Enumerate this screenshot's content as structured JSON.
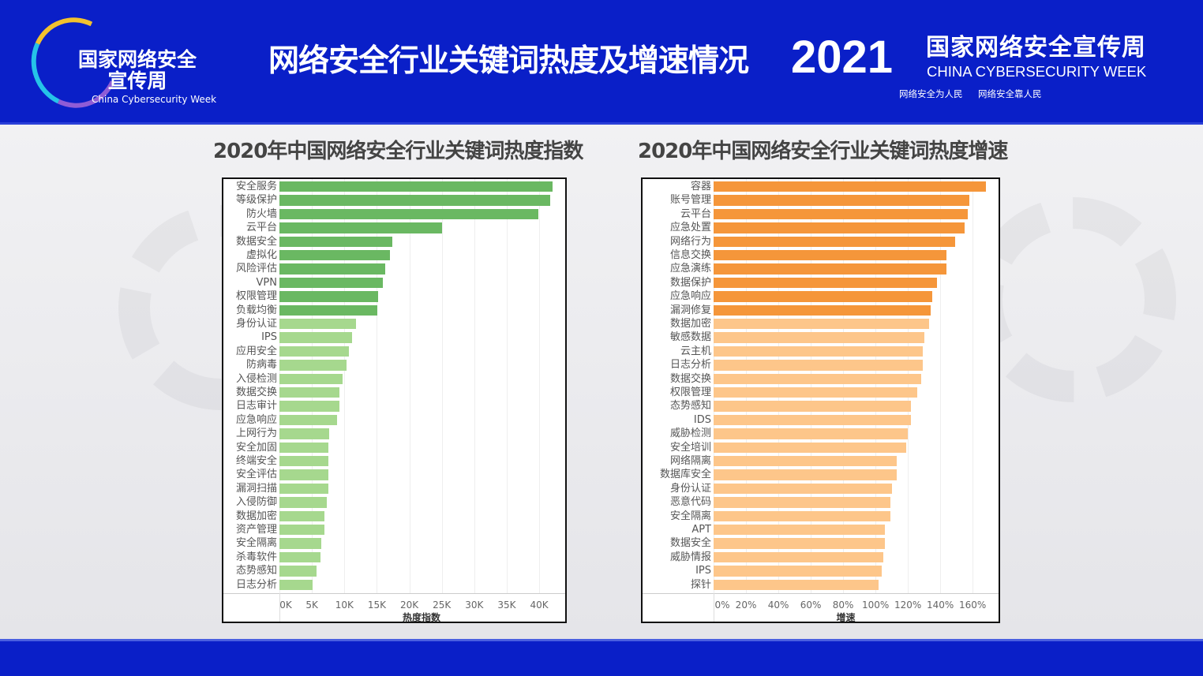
{
  "header": {
    "logo_cn": "国家网络安全宣传周",
    "logo_en": "China Cybersecurity Week",
    "title": "网络安全行业关键词热度及增速情况",
    "year": "2021",
    "week_cn": "国家网络安全宣传周",
    "week_en": "CHINA CYBERSECURITY WEEK",
    "slogan1": "网络安全为人民",
    "slogan2": "网络安全靠人民"
  },
  "chart_data": [
    {
      "type": "bar",
      "orientation": "horizontal",
      "title": "2020年中国网络安全行业关键词热度指数",
      "xlabel": "热度指数",
      "xlim": [
        0,
        44000
      ],
      "ticks": [
        "0K",
        "5K",
        "10K",
        "15K",
        "20K",
        "25K",
        "30K",
        "35K",
        "40K"
      ],
      "tick_values": [
        0,
        5000,
        10000,
        15000,
        20000,
        25000,
        30000,
        35000,
        40000
      ],
      "highlight_top": 10,
      "colors": {
        "top": "#6ab862",
        "rest": "#a6d88e"
      },
      "categories": [
        "安全服务",
        "等级保护",
        "防火墙",
        "云平台",
        "数据安全",
        "虚拟化",
        "风险评估",
        "VPN",
        "权限管理",
        "负载均衡",
        "身份认证",
        "IPS",
        "应用安全",
        "防病毒",
        "入侵检测",
        "数据交换",
        "日志审计",
        "应急响应",
        "上网行为",
        "安全加固",
        "终端安全",
        "安全评估",
        "漏洞扫描",
        "入侵防御",
        "数据加密",
        "资产管理",
        "安全隔离",
        "杀毒软件",
        "态势感知",
        "日志分析"
      ],
      "values": [
        42000,
        41700,
        39900,
        25000,
        17400,
        17000,
        16300,
        15900,
        15200,
        15100,
        11800,
        11200,
        10700,
        10300,
        9700,
        9200,
        9200,
        8900,
        7700,
        7500,
        7500,
        7500,
        7500,
        7300,
        6900,
        6900,
        6400,
        6300,
        5700,
        5100
      ]
    },
    {
      "type": "bar",
      "orientation": "horizontal",
      "title": "2020年中国网络安全行业关键词热度增速",
      "xlabel": "增速",
      "xlim": [
        0,
        176
      ],
      "ticks": [
        "0%",
        "20%",
        "40%",
        "60%",
        "80%",
        "100%",
        "120%",
        "140%",
        "160%"
      ],
      "tick_values": [
        0,
        20,
        40,
        60,
        80,
        100,
        120,
        140,
        160
      ],
      "highlight_top": 10,
      "colors": {
        "top": "#f5963a",
        "rest": "#fdc68a"
      },
      "categories": [
        "容器",
        "账号管理",
        "云平台",
        "应急处置",
        "网络行为",
        "信息交换",
        "应急演练",
        "数据保护",
        "应急响应",
        "漏洞修复",
        "数据加密",
        "敏感数据",
        "云主机",
        "日志分析",
        "数据交换",
        "权限管理",
        "态势感知",
        "IDS",
        "威胁检测",
        "安全培训",
        "网络隔离",
        "数据库安全",
        "身份认证",
        "恶意代码",
        "安全隔离",
        "APT",
        "数据安全",
        "威胁情报",
        "IPS",
        "探针"
      ],
      "values": [
        168,
        158,
        157,
        155,
        149,
        144,
        144,
        138,
        135,
        134,
        133,
        130,
        129,
        129,
        128,
        126,
        122,
        122,
        120,
        119,
        113,
        113,
        110,
        109,
        109,
        106,
        106,
        105,
        104,
        102
      ]
    }
  ]
}
